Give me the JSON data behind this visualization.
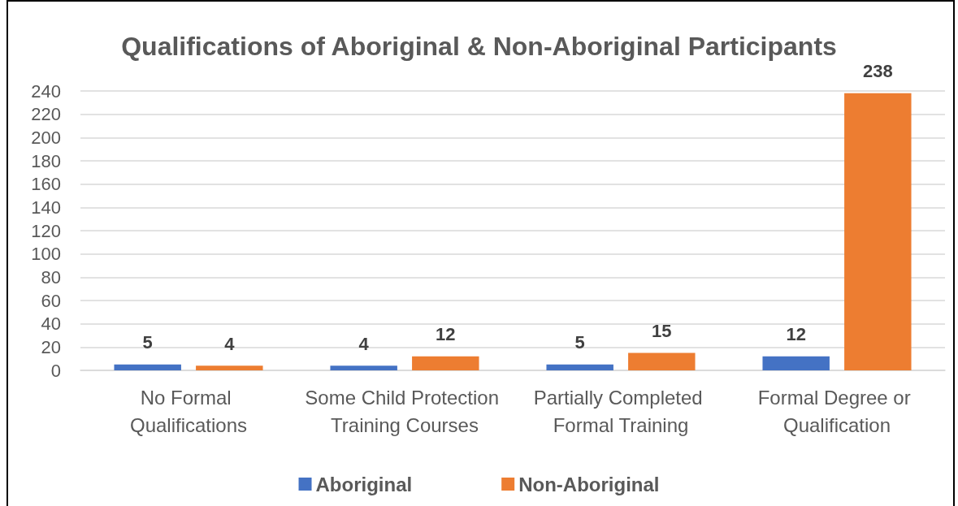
{
  "chart_data": {
    "type": "bar",
    "title": "Qualifications of Aboriginal & Non-Aboriginal Participants",
    "categories": [
      "No Formal Qualifications",
      "Some Child Protection Training Courses",
      "Partially Completed Formal Training",
      "Formal Degree or Qualification"
    ],
    "series": [
      {
        "name": "Aboriginal",
        "color": "#4472c4",
        "values": [
          5,
          4,
          5,
          12
        ]
      },
      {
        "name": "Non-Aboriginal",
        "color": "#ed7d31",
        "values": [
          4,
          12,
          15,
          238
        ]
      }
    ],
    "ylim": [
      0,
      240
    ],
    "yticks": [
      0,
      20,
      40,
      60,
      80,
      100,
      120,
      140,
      160,
      180,
      200,
      220,
      240
    ],
    "grid": "y",
    "legend": "bottom",
    "data_labels": true
  }
}
